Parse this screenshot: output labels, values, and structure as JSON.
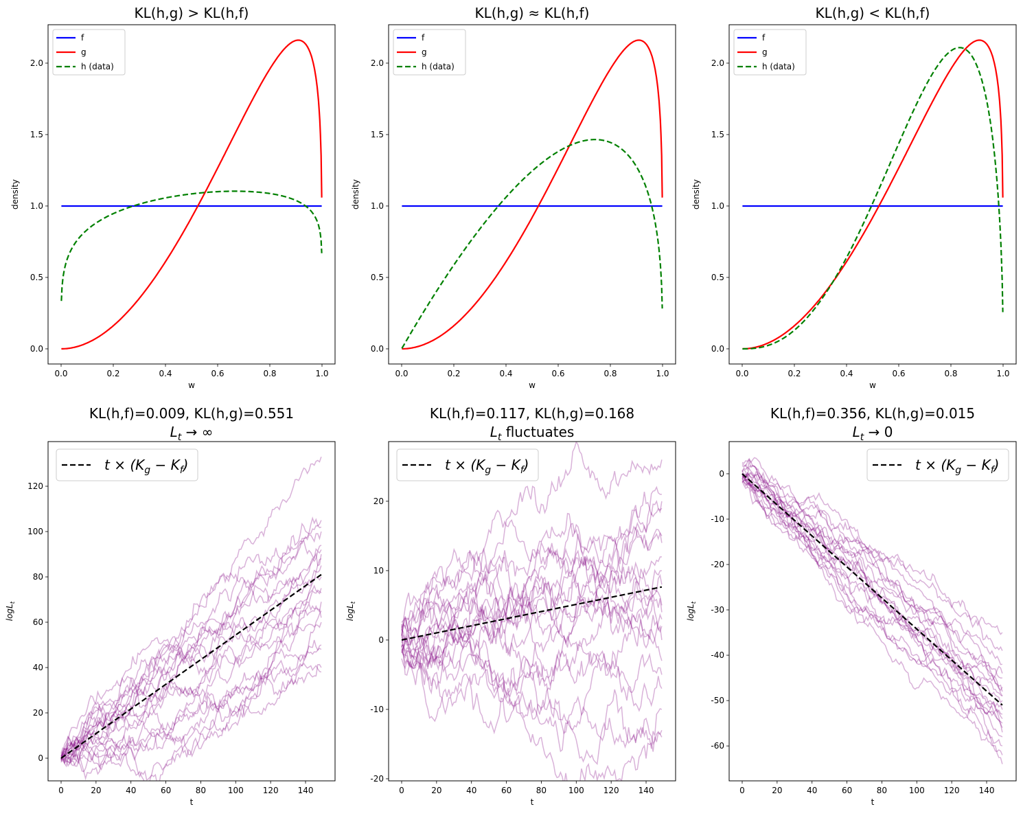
{
  "chart_data": [
    {
      "type": "line",
      "title": "KL(h,g) > KL(h,f)",
      "xlabel": "w",
      "ylabel": "density",
      "xlim": [
        -0.05,
        1.05
      ],
      "ylim": [
        -0.106,
        2.269
      ],
      "xticks": [
        "0.0",
        "0.2",
        "0.4",
        "0.6",
        "0.8",
        "1.0"
      ],
      "yticks": [
        "0.0",
        "0.5",
        "1.0",
        "1.5",
        "2.0"
      ],
      "legend_position": "upper-left",
      "series": [
        {
          "name": "f",
          "color": "#0000ff",
          "style": "solid",
          "model": {
            "dist": "uniform"
          }
        },
        {
          "name": "g",
          "color": "#ff0000",
          "style": "solid",
          "model": {
            "dist": "beta",
            "a": 3,
            "b": 1.2
          }
        },
        {
          "name": "h (data)",
          "color": "#008000",
          "style": "dashed",
          "model": {
            "dist": "beta",
            "a": 1.2,
            "b": 1.1
          }
        }
      ]
    },
    {
      "type": "line",
      "title": "KL(h,g) ≈ KL(h,f)",
      "xlabel": "w",
      "ylabel": "density",
      "xlim": [
        -0.05,
        1.05
      ],
      "ylim": [
        -0.106,
        2.269
      ],
      "xticks": [
        "0.0",
        "0.2",
        "0.4",
        "0.6",
        "0.8",
        "1.0"
      ],
      "yticks": [
        "0.0",
        "0.5",
        "1.0",
        "1.5",
        "2.0"
      ],
      "legend_position": "upper-left",
      "series": [
        {
          "name": "f",
          "color": "#0000ff",
          "style": "solid",
          "model": {
            "dist": "uniform"
          }
        },
        {
          "name": "g",
          "color": "#ff0000",
          "style": "solid",
          "model": {
            "dist": "beta",
            "a": 3,
            "b": 1.2
          }
        },
        {
          "name": "h (data)",
          "color": "#008000",
          "style": "dashed",
          "model": {
            "dist": "beta",
            "a": 2,
            "b": 1.35
          }
        }
      ]
    },
    {
      "type": "line",
      "title": "KL(h,g) < KL(h,f)",
      "xlabel": "w",
      "ylabel": "density",
      "xlim": [
        -0.05,
        1.05
      ],
      "ylim": [
        -0.106,
        2.269
      ],
      "xticks": [
        "0.0",
        "0.2",
        "0.4",
        "0.6",
        "0.8",
        "1.0"
      ],
      "yticks": [
        "0.0",
        "0.5",
        "1.0",
        "1.5",
        "2.0"
      ],
      "legend_position": "upper-left",
      "series": [
        {
          "name": "f",
          "color": "#0000ff",
          "style": "solid",
          "model": {
            "dist": "uniform"
          }
        },
        {
          "name": "g",
          "color": "#ff0000",
          "style": "solid",
          "model": {
            "dist": "beta",
            "a": 3,
            "b": 1.2
          }
        },
        {
          "name": "h (data)",
          "color": "#008000",
          "style": "dashed",
          "model": {
            "dist": "beta",
            "a": 3.5,
            "b": 1.5
          }
        }
      ]
    },
    {
      "type": "line",
      "title": "KL(h,f)=0.009, KL(h,g)=0.551",
      "subtitle": {
        "main": "L",
        "sub": "t",
        "rest": " → ∞"
      },
      "xlabel": "t",
      "ylabel": {
        "main": "logL",
        "sub": "t"
      },
      "xlim": [
        -7.47,
        156.9
      ],
      "ylim": [
        -10,
        139.7
      ],
      "xticks": [
        "0",
        "20",
        "40",
        "60",
        "80",
        "100",
        "120",
        "140"
      ],
      "yticks": [
        "0",
        "20",
        "40",
        "60",
        "80",
        "100",
        "120"
      ],
      "legend_position": "upper-left",
      "legend_label": [
        {
          "t": "t × (K"
        },
        {
          "s": "g"
        },
        {
          "t": " − K"
        },
        {
          "s": "f"
        },
        {
          "t": ")"
        }
      ],
      "trend": {
        "color": "#000000",
        "style": "dashed",
        "x": [
          0,
          149
        ],
        "y": [
          0,
          81
        ]
      },
      "paths": {
        "count": 20,
        "steps": 150,
        "color": "#800080",
        "alpha": 0.3,
        "step_std": 1.8,
        "final_values": [
          133,
          105,
          102,
          100,
          94,
          92,
          90,
          88,
          85,
          80,
          75,
          73,
          69,
          65,
          62,
          60,
          50,
          48,
          40,
          38
        ]
      }
    },
    {
      "type": "line",
      "title": "KL(h,f)=0.117, KL(h,g)=0.168",
      "subtitle": {
        "main": "L",
        "sub": "t",
        "rest": " fluctuates"
      },
      "xlabel": "t",
      "ylabel": {
        "main": "logL",
        "sub": "t"
      },
      "xlim": [
        -7.47,
        156.9
      ],
      "ylim": [
        -20.3,
        28.6
      ],
      "xticks": [
        "0",
        "20",
        "40",
        "60",
        "80",
        "100",
        "120",
        "140"
      ],
      "yticks": [
        "-20",
        "-10",
        "0",
        "10",
        "20"
      ],
      "legend_position": "upper-left",
      "legend_label": [
        {
          "t": "t × (K"
        },
        {
          "s": "g"
        },
        {
          "t": " − K"
        },
        {
          "s": "f"
        },
        {
          "t": ")"
        }
      ],
      "trend": {
        "color": "#000000",
        "style": "dashed",
        "x": [
          0,
          149
        ],
        "y": [
          0,
          7.65
        ]
      },
      "paths": {
        "count": 20,
        "steps": 150,
        "color": "#800080",
        "alpha": 0.3,
        "step_std": 1.0,
        "final_values": [
          26,
          21,
          20,
          19,
          15,
          14,
          12,
          10,
          8,
          5,
          3,
          2,
          0,
          -3,
          -5,
          -7,
          -10,
          -13,
          -14,
          4
        ]
      }
    },
    {
      "type": "line",
      "title": "KL(h,f)=0.356, KL(h,g)=0.015",
      "subtitle": {
        "main": "L",
        "sub": "t",
        "rest": " → 0"
      },
      "xlabel": "t",
      "ylabel": {
        "main": "logL",
        "sub": "t"
      },
      "xlim": [
        -7.47,
        156.9
      ],
      "ylim": [
        -67.7,
        7.1
      ],
      "xticks": [
        "0",
        "20",
        "40",
        "60",
        "80",
        "100",
        "120",
        "140"
      ],
      "yticks": [
        "-60",
        "-50",
        "-40",
        "-30",
        "-20",
        "-10",
        "0"
      ],
      "legend_position": "upper-right",
      "legend_label": [
        {
          "t": "t × (K"
        },
        {
          "s": "g"
        },
        {
          "t": " − K"
        },
        {
          "s": "f"
        },
        {
          "t": ")"
        }
      ],
      "trend": {
        "color": "#000000",
        "style": "dashed",
        "x": [
          0,
          149
        ],
        "y": [
          0,
          -51
        ]
      },
      "paths": {
        "count": 20,
        "steps": 150,
        "color": "#800080",
        "alpha": 0.3,
        "step_std": 0.65,
        "final_values": [
          -35,
          -39,
          -42,
          -44,
          -45,
          -47,
          -48,
          -49,
          -50,
          -52,
          -53,
          -55,
          -56,
          -57,
          -58,
          -60,
          -62,
          -64,
          -49,
          -54
        ]
      }
    }
  ]
}
